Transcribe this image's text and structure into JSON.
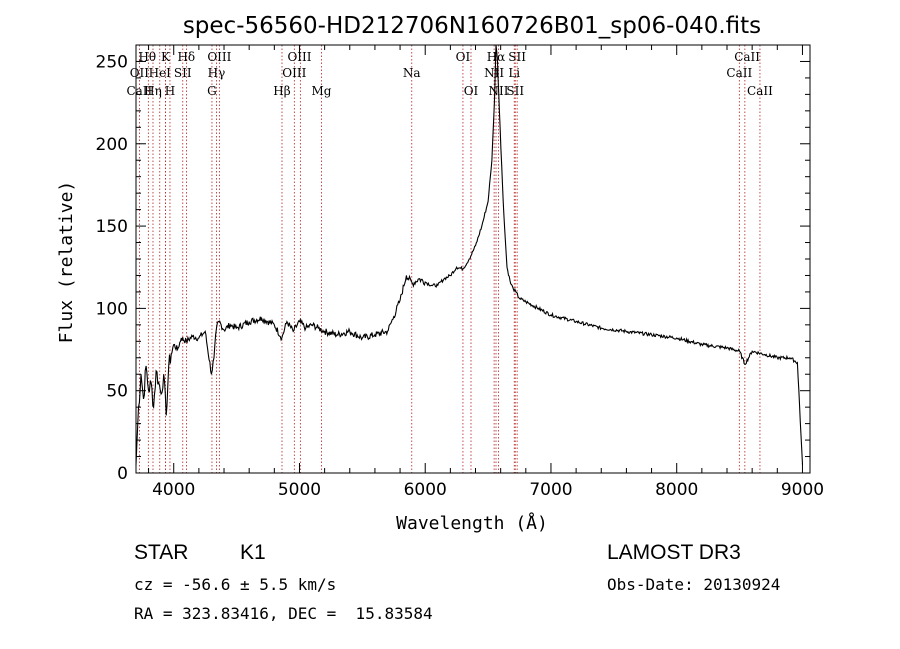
{
  "chart_data": {
    "type": "line",
    "title": "spec-56560-HD212706N160726B01_sp06-040.fits",
    "xlabel": "Wavelength (Å)",
    "ylabel": "Flux (relative)",
    "xlim": [
      3700,
      9060
    ],
    "ylim": [
      0,
      260
    ],
    "xticks": [
      4000,
      5000,
      6000,
      7000,
      8000,
      9000
    ],
    "yticks": [
      0,
      50,
      100,
      150,
      200,
      250
    ],
    "grid": false,
    "series": [
      {
        "name": "spectrum",
        "x": [
          3700,
          3720,
          3740,
          3760,
          3780,
          3800,
          3820,
          3840,
          3860,
          3880,
          3900,
          3920,
          3940,
          3960,
          3980,
          4000,
          4030,
          4060,
          4100,
          4150,
          4200,
          4250,
          4300,
          4320,
          4340,
          4360,
          4400,
          4450,
          4500,
          4600,
          4700,
          4800,
          4860,
          4900,
          4950,
          5000,
          5050,
          5100,
          5150,
          5200,
          5300,
          5400,
          5500,
          5600,
          5700,
          5750,
          5800,
          5850,
          5900,
          5950,
          6000,
          6050,
          6100,
          6150,
          6200,
          6250,
          6300,
          6350,
          6400,
          6450,
          6500,
          6530,
          6550,
          6563,
          6575,
          6590,
          6620,
          6650,
          6680,
          6700,
          6720,
          6750,
          6800,
          6900,
          7000,
          7200,
          7400,
          7600,
          7800,
          8000,
          8200,
          8400,
          8500,
          8542,
          8600,
          8700,
          8800,
          8900,
          8960,
          9000
        ],
        "values": [
          5,
          40,
          60,
          45,
          65,
          50,
          55,
          40,
          62,
          55,
          48,
          60,
          35,
          65,
          72,
          78,
          75,
          82,
          80,
          83,
          82,
          86,
          60,
          70,
          88,
          92,
          87,
          90,
          88,
          92,
          94,
          90,
          82,
          92,
          86,
          92,
          88,
          90,
          88,
          86,
          84,
          86,
          82,
          84,
          86,
          95,
          105,
          120,
          115,
          118,
          116,
          114,
          114,
          118,
          120,
          125,
          124,
          130,
          138,
          150,
          165,
          190,
          225,
          260,
          250,
          220,
          165,
          125,
          115,
          112,
          110,
          106,
          104,
          100,
          96,
          92,
          88,
          86,
          84,
          82,
          78,
          76,
          74,
          66,
          74,
          72,
          70,
          70,
          67,
          5
        ]
      }
    ],
    "spectral_lines": [
      {
        "name": "Hθ",
        "wavelength": 3798
      },
      {
        "name": "CaII",
        "wavelength": 3934
      },
      {
        "name": "OII",
        "wavelength": 3727
      },
      {
        "name": "Hη",
        "wavelength": 3835
      },
      {
        "name": "K",
        "wavelength": 3934
      },
      {
        "name": "HeI",
        "wavelength": 3889
      },
      {
        "name": "H",
        "wavelength": 3970
      },
      {
        "name": "Hδ",
        "wavelength": 4102
      },
      {
        "name": "SII",
        "wavelength": 4072
      },
      {
        "name": "OIII",
        "wavelength": 4363
      },
      {
        "name": "Hγ",
        "wavelength": 4340
      },
      {
        "name": "G",
        "wavelength": 4304
      },
      {
        "name": "Hβ",
        "wavelength": 4861
      },
      {
        "name": "OIII",
        "wavelength": 4959
      },
      {
        "name": "OIII",
        "wavelength": 5007
      },
      {
        "name": "Mg",
        "wavelength": 5175
      },
      {
        "name": "Na",
        "wavelength": 5893
      },
      {
        "name": "OI",
        "wavelength": 6300
      },
      {
        "name": "OI",
        "wavelength": 6364
      },
      {
        "name": "NII",
        "wavelength": 6548
      },
      {
        "name": "Hα",
        "wavelength": 6563
      },
      {
        "name": "NII",
        "wavelength": 6583
      },
      {
        "name": "Li",
        "wavelength": 6708
      },
      {
        "name": "SII",
        "wavelength": 6716
      },
      {
        "name": "SII",
        "wavelength": 6731
      },
      {
        "name": "CaII",
        "wavelength": 8498
      },
      {
        "name": "CaII",
        "wavelength": 8542
      },
      {
        "name": "CaII",
        "wavelength": 8662
      }
    ],
    "line_labels": [
      {
        "text": "Hθ",
        "row": 1,
        "at": 3790
      },
      {
        "text": "K",
        "row": 1,
        "at": 3934
      },
      {
        "text": "Hδ",
        "row": 1,
        "at": 4100
      },
      {
        "text": "OIII",
        "row": 1,
        "at": 4363
      },
      {
        "text": "OIII",
        "row": 1,
        "at": 5000
      },
      {
        "text": "OI",
        "row": 1,
        "at": 6300
      },
      {
        "text": "Hα",
        "row": 1,
        "at": 6563
      },
      {
        "text": "SII",
        "row": 1,
        "at": 6731
      },
      {
        "text": "CaII",
        "row": 1,
        "at": 8560
      },
      {
        "text": "OII",
        "row": 2,
        "at": 3727
      },
      {
        "text": "HeI",
        "row": 2,
        "at": 3889
      },
      {
        "text": "SII",
        "row": 2,
        "at": 4072
      },
      {
        "text": "Hγ",
        "row": 2,
        "at": 4340
      },
      {
        "text": "OIII",
        "row": 2,
        "at": 4959
      },
      {
        "text": "Na",
        "row": 2,
        "at": 5893
      },
      {
        "text": "NII",
        "row": 2,
        "at": 6548
      },
      {
        "text": "Li",
        "row": 2,
        "at": 6708
      },
      {
        "text": "CaII",
        "row": 2,
        "at": 8498
      },
      {
        "text": "CaII",
        "row": 3,
        "at": 3727
      },
      {
        "text": "Hη",
        "row": 3,
        "at": 3835
      },
      {
        "text": "H",
        "row": 3,
        "at": 3970
      },
      {
        "text": "G",
        "row": 3,
        "at": 4304
      },
      {
        "text": "Hβ",
        "row": 3,
        "at": 4861
      },
      {
        "text": "Mg",
        "row": 3,
        "at": 5175
      },
      {
        "text": "OI",
        "row": 3,
        "at": 6364
      },
      {
        "text": "NII",
        "row": 3,
        "at": 6583
      },
      {
        "text": "SII",
        "row": 3,
        "at": 6716
      },
      {
        "text": "CaII",
        "row": 3,
        "at": 8662
      }
    ]
  },
  "info": {
    "class": "STAR",
    "subclass": "K1",
    "survey": "LAMOST DR3",
    "cz": "cz = -56.6 ± 5.5 km/s",
    "obs_date": "Obs-Date: 20130924",
    "coords": "RA = 323.83416, DEC =  15.83584"
  },
  "colors": {
    "line_marker": "#b22222",
    "spectrum": "#000000"
  }
}
